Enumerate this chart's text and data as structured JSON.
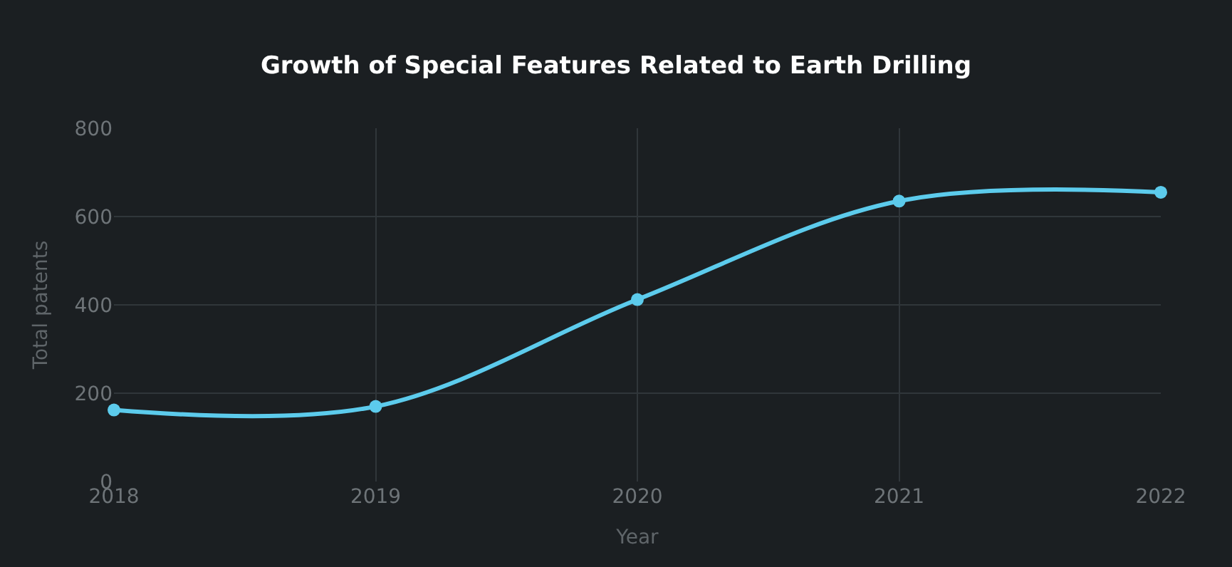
{
  "chart_data": {
    "type": "line",
    "title": "Growth of Special Features Related to Earth Drilling",
    "xlabel": "Year",
    "ylabel": "Total patents",
    "x": [
      2018,
      2019,
      2020,
      2021,
      2022
    ],
    "series": [
      {
        "color": "#5ccbec",
        "values": [
          162,
          170,
          412,
          635,
          655
        ]
      }
    ],
    "xlim": [
      2018,
      2022
    ],
    "xticks": [
      2018,
      2019,
      2020,
      2021,
      2022
    ],
    "ylim": [
      0,
      800
    ],
    "yticks": [
      0,
      200,
      400,
      600,
      800
    ],
    "grid": true,
    "marker": "circle",
    "line_style": "solid"
  }
}
